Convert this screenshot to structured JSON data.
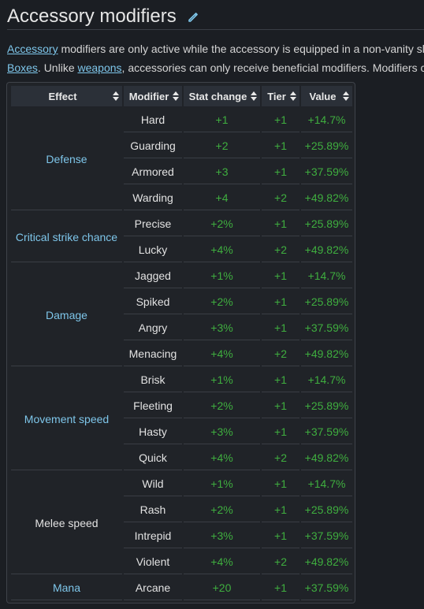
{
  "heading": {
    "title": "Accessory modifiers",
    "edit_icon": "pencil-icon"
  },
  "intro": {
    "line1_link": "Accessory",
    "line1_text": " modifiers are only active while the accessory is equipped in a non-vanity sl",
    "line2_link1": "Boxes",
    "line2_text1": ". Unlike ",
    "line2_link2": "weapons",
    "line2_text2": ", accessories can only receive beneficial modifiers. Modifiers c"
  },
  "table": {
    "headers": [
      "Effect",
      "Modifier",
      "Stat change",
      "Tier",
      "Value"
    ],
    "colors": {
      "link": "#7ec6ea",
      "positive": "#3fae3f",
      "header_bg": "#2b3038"
    },
    "groups": [
      {
        "effect": "Defense",
        "effect_is_link": true,
        "rows": [
          {
            "modifier": "Hard",
            "stat": "+1",
            "tier": "+1",
            "value": "+14.7%"
          },
          {
            "modifier": "Guarding",
            "stat": "+2",
            "tier": "+1",
            "value": "+25.89%"
          },
          {
            "modifier": "Armored",
            "stat": "+3",
            "tier": "+1",
            "value": "+37.59%"
          },
          {
            "modifier": "Warding",
            "stat": "+4",
            "tier": "+2",
            "value": "+49.82%"
          }
        ]
      },
      {
        "effect": "Critical strike chance",
        "effect_is_link": true,
        "rows": [
          {
            "modifier": "Precise",
            "stat": "+2%",
            "tier": "+1",
            "value": "+25.89%"
          },
          {
            "modifier": "Lucky",
            "stat": "+4%",
            "tier": "+2",
            "value": "+49.82%"
          }
        ]
      },
      {
        "effect": "Damage",
        "effect_is_link": true,
        "rows": [
          {
            "modifier": "Jagged",
            "stat": "+1%",
            "tier": "+1",
            "value": "+14.7%"
          },
          {
            "modifier": "Spiked",
            "stat": "+2%",
            "tier": "+1",
            "value": "+25.89%"
          },
          {
            "modifier": "Angry",
            "stat": "+3%",
            "tier": "+1",
            "value": "+37.59%"
          },
          {
            "modifier": "Menacing",
            "stat": "+4%",
            "tier": "+2",
            "value": "+49.82%"
          }
        ]
      },
      {
        "effect": "Movement speed",
        "effect_is_link": true,
        "rows": [
          {
            "modifier": "Brisk",
            "stat": "+1%",
            "tier": "+1",
            "value": "+14.7%"
          },
          {
            "modifier": "Fleeting",
            "stat": "+2%",
            "tier": "+1",
            "value": "+25.89%"
          },
          {
            "modifier": "Hasty",
            "stat": "+3%",
            "tier": "+1",
            "value": "+37.59%"
          },
          {
            "modifier": "Quick",
            "stat": "+4%",
            "tier": "+2",
            "value": "+49.82%"
          }
        ]
      },
      {
        "effect": "Melee speed",
        "effect_is_link": false,
        "rows": [
          {
            "modifier": "Wild",
            "stat": "+1%",
            "tier": "+1",
            "value": "+14.7%"
          },
          {
            "modifier": "Rash",
            "stat": "+2%",
            "tier": "+1",
            "value": "+25.89%"
          },
          {
            "modifier": "Intrepid",
            "stat": "+3%",
            "tier": "+1",
            "value": "+37.59%"
          },
          {
            "modifier": "Violent",
            "stat": "+4%",
            "tier": "+2",
            "value": "+49.82%"
          }
        ]
      },
      {
        "effect": "Mana",
        "effect_is_link": true,
        "rows": [
          {
            "modifier": "Arcane",
            "stat": "+20",
            "tier": "+1",
            "value": "+37.59%"
          }
        ]
      }
    ]
  }
}
